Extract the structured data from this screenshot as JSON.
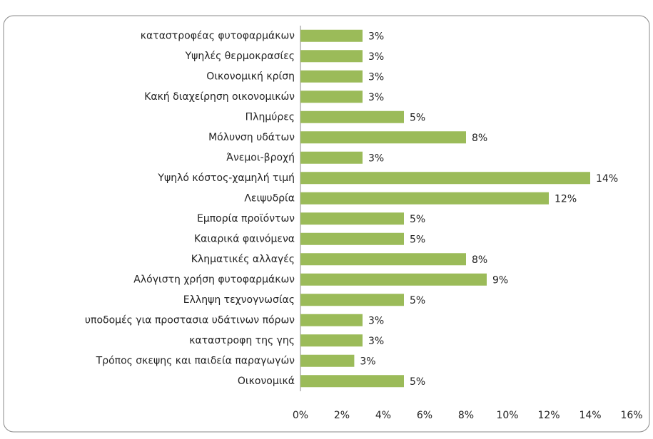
{
  "chart_data": {
    "type": "barh",
    "categories": [
      "καταστροφέας φυτοφαρμάκων",
      "Υψηλές θερμοκρασίες",
      "Οικονομική κρίση",
      "Κακή διαχείρηση οικονομικών",
      "Πλημύρες",
      "Μόλυνση υδάτων",
      "Άνεμοι-βροχή",
      "Υψηλό κόστος-χαμηλή τιμή",
      "Λειψυδρία",
      "Εμπορία προϊόντων",
      "Καιαρικά φαινόμενα",
      "Κληματικές αλλαγές",
      "Αλόγιστη χρήση φυτοφαρμάκων",
      "Ελληψη τεχνογνωσίας",
      "υποδομές για προστασια υδάτινων πόρων",
      "καταστροφη της γης",
      "Τρόπος σκεψης και παιδεία παραγωγών",
      "Οικονομικά"
    ],
    "values": [
      3,
      3,
      3,
      3,
      5,
      8,
      3,
      14,
      12,
      5,
      5,
      8,
      9,
      5,
      3,
      3,
      2.6,
      5
    ],
    "value_labels": [
      "3%",
      "3%",
      "3%",
      "3%",
      "5%",
      "8%",
      "3%",
      "14%",
      "12%",
      "5%",
      "5%",
      "8%",
      "9%",
      "5%",
      "3%",
      "3%",
      "3%",
      "5%"
    ],
    "color": "#9bbb59",
    "xlim": [
      0,
      16
    ],
    "xticks": [
      {
        "value": 0,
        "label": "0%"
      },
      {
        "value": 2,
        "label": "2%"
      },
      {
        "value": 4,
        "label": "4%"
      },
      {
        "value": 6,
        "label": "6%"
      },
      {
        "value": 8,
        "label": "8%"
      },
      {
        "value": 10,
        "label": "10%"
      },
      {
        "value": 12,
        "label": "12%"
      },
      {
        "value": 14,
        "label": "14%"
      },
      {
        "value": 16,
        "label": "16%"
      }
    ],
    "grid": false
  }
}
